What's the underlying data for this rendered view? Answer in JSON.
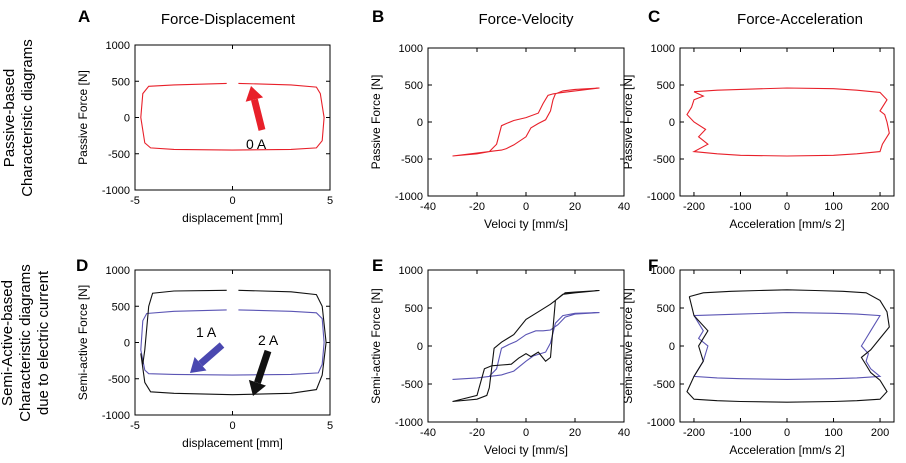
{
  "column_titles": [
    "Force-Displacement",
    "Force-Velocity",
    "Force-Acceleration"
  ],
  "row_labels": [
    [
      "Passive-based",
      "Characteristic diagrams"
    ],
    [
      "Semi-Active-based",
      "Characteristic diagrams",
      "due to electric current"
    ]
  ],
  "colors": {
    "passive": "#e8202a",
    "current_1A": "#5b55b4",
    "current_2A": "#111111",
    "arrow_0A": "#e8202a",
    "arrow_1A": "#4a48b0",
    "arrow_2A": "#111111"
  },
  "chart_data": [
    {
      "panel": "A",
      "type": "line",
      "title": "Force-Displacement",
      "xlabel": "displacement [mm]",
      "ylabel": "Passive Force [N]",
      "xlim": [
        -5,
        5
      ],
      "ylim": [
        -1000,
        1000
      ],
      "xticks": [
        -5,
        0,
        5
      ],
      "yticks": [
        -1000,
        -500,
        0,
        500,
        1000
      ],
      "annotations": [
        {
          "text": "0 A"
        }
      ],
      "series": [
        {
          "name": "0 A",
          "x": [
            -0.3,
            -3,
            -4.3,
            -4.6,
            -4.7,
            -4.5,
            -4.2,
            -3,
            0,
            3,
            4.3,
            4.6,
            4.7,
            4.5,
            4.3,
            3,
            0.3
          ],
          "y": [
            470,
            450,
            430,
            330,
            0,
            -350,
            -420,
            -440,
            -450,
            -440,
            -420,
            -320,
            0,
            330,
            420,
            450,
            470
          ]
        }
      ]
    },
    {
      "panel": "B",
      "type": "line",
      "title": "Force-Velocity",
      "xlabel": "Veloci ty [mm/s]",
      "ylabel": "Passive Force [N]",
      "xlim": [
        -40,
        40
      ],
      "ylim": [
        -1000,
        1000
      ],
      "xticks": [
        -40,
        -20,
        0,
        20,
        40
      ],
      "yticks": [
        -1000,
        -500,
        0,
        500,
        1000
      ],
      "series": [
        {
          "name": "0 A",
          "x": [
            -30,
            -20,
            -15,
            -12,
            -10,
            -8,
            -5,
            0,
            5,
            7,
            9,
            11,
            12,
            15,
            20,
            30,
            20,
            15,
            12,
            11,
            10,
            8,
            5,
            2,
            0,
            -5,
            -8,
            -10,
            -13,
            -15,
            -20,
            -30
          ],
          "y": [
            -460,
            -430,
            -400,
            -300,
            -50,
            -20,
            20,
            60,
            120,
            250,
            360,
            380,
            385,
            400,
            420,
            460,
            440,
            420,
            380,
            300,
            150,
            30,
            -20,
            -80,
            -200,
            -310,
            -360,
            -380,
            -390,
            -400,
            -420,
            -460
          ]
        }
      ]
    },
    {
      "panel": "C",
      "type": "line",
      "title": "Force-Acceleration",
      "xlabel": "Acceleration [mm/s  2]",
      "ylabel": "Passive Force [N]",
      "xlim": [
        -230,
        230
      ],
      "ylim": [
        -1000,
        1000
      ],
      "xticks": [
        -200,
        -100,
        0,
        100,
        200
      ],
      "yticks": [
        -1000,
        -500,
        0,
        500,
        1000
      ],
      "series": [
        {
          "name": "0 A",
          "x": [
            -200,
            -150,
            -100,
            0,
            100,
            150,
            200,
            215,
            200,
            210,
            215,
            220,
            205,
            200,
            150,
            100,
            0,
            -100,
            -150,
            -200,
            -170,
            -190,
            -175,
            -200,
            -215,
            -205,
            -200,
            -180,
            -200
          ],
          "y": [
            410,
            430,
            440,
            460,
            450,
            430,
            400,
            300,
            150,
            100,
            0,
            -150,
            -300,
            -400,
            -430,
            -450,
            -460,
            -450,
            -430,
            -400,
            -300,
            -200,
            -100,
            0,
            100,
            200,
            300,
            350,
            410
          ]
        }
      ]
    }
  ],
  "chart_data_row2": [
    {
      "panel": "D",
      "type": "line",
      "title": "Force-Displacement",
      "xlabel": "displacement [mm]",
      "ylabel": "Semi-active Force [N]",
      "xlim": [
        -5,
        5
      ],
      "ylim": [
        -1000,
        1000
      ],
      "xticks": [
        -5,
        0,
        5
      ],
      "yticks": [
        -1000,
        -500,
        0,
        500,
        1000
      ],
      "annotations": [
        {
          "text": "1 A"
        },
        {
          "text": "2 A"
        }
      ],
      "series": [
        {
          "name": "1 A",
          "x": [
            -0.3,
            -3,
            -4.4,
            -4.6,
            -4.7,
            -4.5,
            -4.3,
            -3,
            0,
            3,
            4.4,
            4.6,
            4.7,
            4.6,
            4.3,
            3,
            0.3
          ],
          "y": [
            450,
            430,
            400,
            300,
            -100,
            -380,
            -430,
            -440,
            -450,
            -440,
            -420,
            -300,
            0,
            330,
            410,
            430,
            450
          ]
        },
        {
          "name": "2 A",
          "x": [
            -0.3,
            -3,
            -4.1,
            -4.3,
            -4.5,
            -4.6,
            -4.7,
            -4.5,
            -4.2,
            -3,
            0,
            3,
            4.3,
            4.6,
            4.8,
            4.6,
            4.3,
            3,
            0.3
          ],
          "y": [
            720,
            710,
            680,
            500,
            -100,
            -300,
            -150,
            -550,
            -680,
            -700,
            -720,
            -700,
            -650,
            -450,
            0,
            500,
            660,
            700,
            720
          ]
        }
      ]
    },
    {
      "panel": "E",
      "type": "line",
      "title": "Force-Velocity",
      "xlabel": "Veloci ty [mm/s]",
      "ylabel": "Semi-active Force [N]",
      "xlim": [
        -40,
        40
      ],
      "ylim": [
        -1000,
        1000
      ],
      "xticks": [
        -40,
        -20,
        0,
        20,
        40
      ],
      "yticks": [
        -1000,
        -500,
        0,
        500,
        1000
      ],
      "series": [
        {
          "name": "1 A",
          "x": [
            -30,
            -20,
            -15,
            -12,
            -10,
            -7,
            -4,
            0,
            4,
            7,
            10,
            13,
            16,
            20,
            30,
            20,
            15,
            12,
            10,
            8,
            5,
            3,
            0,
            -5,
            -10,
            -12,
            -15,
            -20,
            -30
          ],
          "y": [
            -440,
            -420,
            -400,
            -300,
            -30,
            20,
            60,
            150,
            200,
            200,
            210,
            280,
            380,
            420,
            440,
            430,
            400,
            300,
            40,
            -80,
            -110,
            -130,
            -200,
            -330,
            -380,
            -390,
            -400,
            -420,
            -440
          ]
        },
        {
          "name": "2 A",
          "x": [
            -30,
            -20,
            -16,
            -15,
            -13,
            -10,
            -5,
            0,
            5,
            10,
            12,
            14,
            16,
            20,
            30,
            20,
            15,
            12,
            10,
            8,
            5,
            2,
            0,
            -3,
            -6,
            -10,
            -14,
            -17,
            -20,
            -30
          ],
          "y": [
            -730,
            -700,
            -650,
            -550,
            -30,
            50,
            150,
            350,
            450,
            550,
            600,
            650,
            700,
            710,
            730,
            700,
            680,
            600,
            -150,
            -200,
            -80,
            -140,
            -100,
            -160,
            -240,
            -250,
            -260,
            -300,
            -650,
            -730
          ]
        }
      ]
    },
    {
      "panel": "F",
      "type": "line",
      "title": "Force-Acceleration",
      "xlabel": "Acceleration [mm/s  2]",
      "ylabel": "Semi-active Force [N]",
      "xlim": [
        -230,
        230
      ],
      "ylim": [
        -1000,
        1000
      ],
      "xticks": [
        -200,
        -100,
        0,
        100,
        200
      ],
      "yticks": [
        -1000,
        -500,
        0,
        500,
        1000
      ],
      "series": [
        {
          "name": "1 A",
          "x": [
            -200,
            -150,
            -100,
            0,
            100,
            150,
            200,
            180,
            170,
            160,
            175,
            170,
            180,
            200,
            150,
            100,
            0,
            -100,
            -150,
            -200,
            -180,
            -170,
            -190,
            -180,
            -200
          ],
          "y": [
            400,
            410,
            420,
            440,
            430,
            420,
            400,
            200,
            100,
            0,
            -100,
            -200,
            -300,
            -400,
            -420,
            -430,
            -440,
            -430,
            -420,
            -400,
            -200,
            0,
            100,
            200,
            400
          ]
        },
        {
          "name": "2 A",
          "x": [
            -210,
            -180,
            -120,
            -60,
            0,
            60,
            120,
            170,
            200,
            215,
            220,
            200,
            180,
            160,
            170,
            180,
            200,
            215,
            200,
            150,
            100,
            0,
            -100,
            -150,
            -200,
            -215,
            -200,
            -180,
            -190,
            -170,
            -200,
            -210
          ],
          "y": [
            650,
            700,
            720,
            730,
            740,
            730,
            720,
            700,
            600,
            450,
            250,
            100,
            -50,
            -150,
            -250,
            -350,
            -450,
            -600,
            -700,
            -720,
            -730,
            -740,
            -730,
            -720,
            -700,
            -600,
            -400,
            -200,
            0,
            200,
            400,
            650
          ]
        }
      ]
    }
  ],
  "icons": {
    "arrow": "arrow-icon"
  }
}
